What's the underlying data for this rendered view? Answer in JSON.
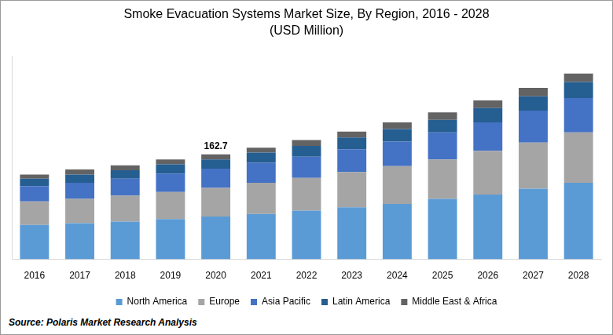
{
  "chart_data": {
    "type": "bar",
    "title": "Smoke Evacuation Systems Market Size, By Region, 2016 - 2028",
    "subtitle": "(USD Million)",
    "source": "Source: Polaris Market Research Analysis",
    "categories": [
      "2016",
      "2017",
      "2018",
      "2019",
      "2020",
      "2021",
      "2022",
      "2023",
      "2024",
      "2025",
      "2026",
      "2027",
      "2028"
    ],
    "series": [
      {
        "name": "North America",
        "color": "#5b9bd5",
        "values": [
          53.4,
          56.0,
          58.6,
          62.5,
          66.4,
          70.3,
          75.5,
          80.7,
          85.9,
          93.7,
          100.3,
          109.4,
          118.5
        ]
      },
      {
        "name": "Europe",
        "color": "#a5a5a5",
        "values": [
          36.5,
          37.8,
          40.4,
          41.7,
          44.3,
          48.2,
          50.8,
          54.7,
          58.6,
          61.2,
          67.7,
          71.6,
          78.1
        ]
      },
      {
        "name": "Asia Pacific",
        "color": "#4472c4",
        "values": [
          23.4,
          24.7,
          26.0,
          28.6,
          29.9,
          31.2,
          32.6,
          35.2,
          37.8,
          41.7,
          44.3,
          49.5,
          53.4
        ]
      },
      {
        "name": "Latin America",
        "color": "#255e91",
        "values": [
          11.7,
          13.0,
          13.0,
          14.3,
          14.3,
          15.6,
          16.9,
          18.2,
          19.5,
          19.5,
          22.1,
          22.1,
          24.7
        ]
      },
      {
        "name": "Middle East & Africa",
        "color": "#636363",
        "values": [
          6.5,
          7.8,
          7.8,
          7.8,
          7.8,
          7.8,
          9.1,
          9.1,
          10.4,
          11.7,
          11.7,
          13.0,
          13.0
        ]
      }
    ],
    "annotations": [
      {
        "category": "2020",
        "text": "162.7"
      }
    ],
    "ylim": [
      0,
      315
    ],
    "stacked": true,
    "grid": false,
    "legend": "bottom",
    "tick_labels": "x"
  }
}
